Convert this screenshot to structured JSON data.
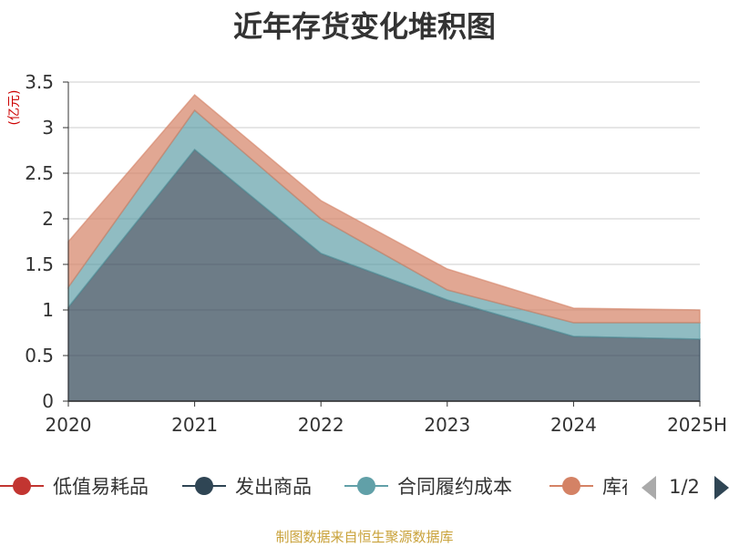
{
  "chart_data": {
    "type": "area",
    "stacked": true,
    "title": "近年存货变化堆积图",
    "ylabel": "(亿元)",
    "x": [
      "2020",
      "2021",
      "2022",
      "2023",
      "2024",
      "2025H"
    ],
    "ylim": [
      0,
      3.5
    ],
    "yticks": [
      "0",
      "0.5",
      "1",
      "1.5",
      "2",
      "2.5",
      "3",
      "3.5"
    ],
    "grid": true,
    "series": [
      {
        "name": "低值易耗品",
        "color": "#c23531",
        "values": [
          0.0,
          0.0,
          0.0,
          0.0,
          0.0,
          0.0
        ]
      },
      {
        "name": "发出商品",
        "color": "#2f4554",
        "values": [
          1.03,
          2.76,
          1.62,
          1.11,
          0.71,
          0.68
        ]
      },
      {
        "name": "合同履约成本",
        "color": "#61a0a8",
        "values": [
          0.22,
          0.43,
          0.38,
          0.11,
          0.15,
          0.18
        ]
      },
      {
        "name": "库存商品",
        "color": "#d48265",
        "values": [
          0.5,
          0.17,
          0.2,
          0.23,
          0.16,
          0.14
        ]
      }
    ],
    "legend": {
      "position": "bottom",
      "page": "1/2"
    }
  },
  "source": "制图数据来自恒生聚源数据库"
}
